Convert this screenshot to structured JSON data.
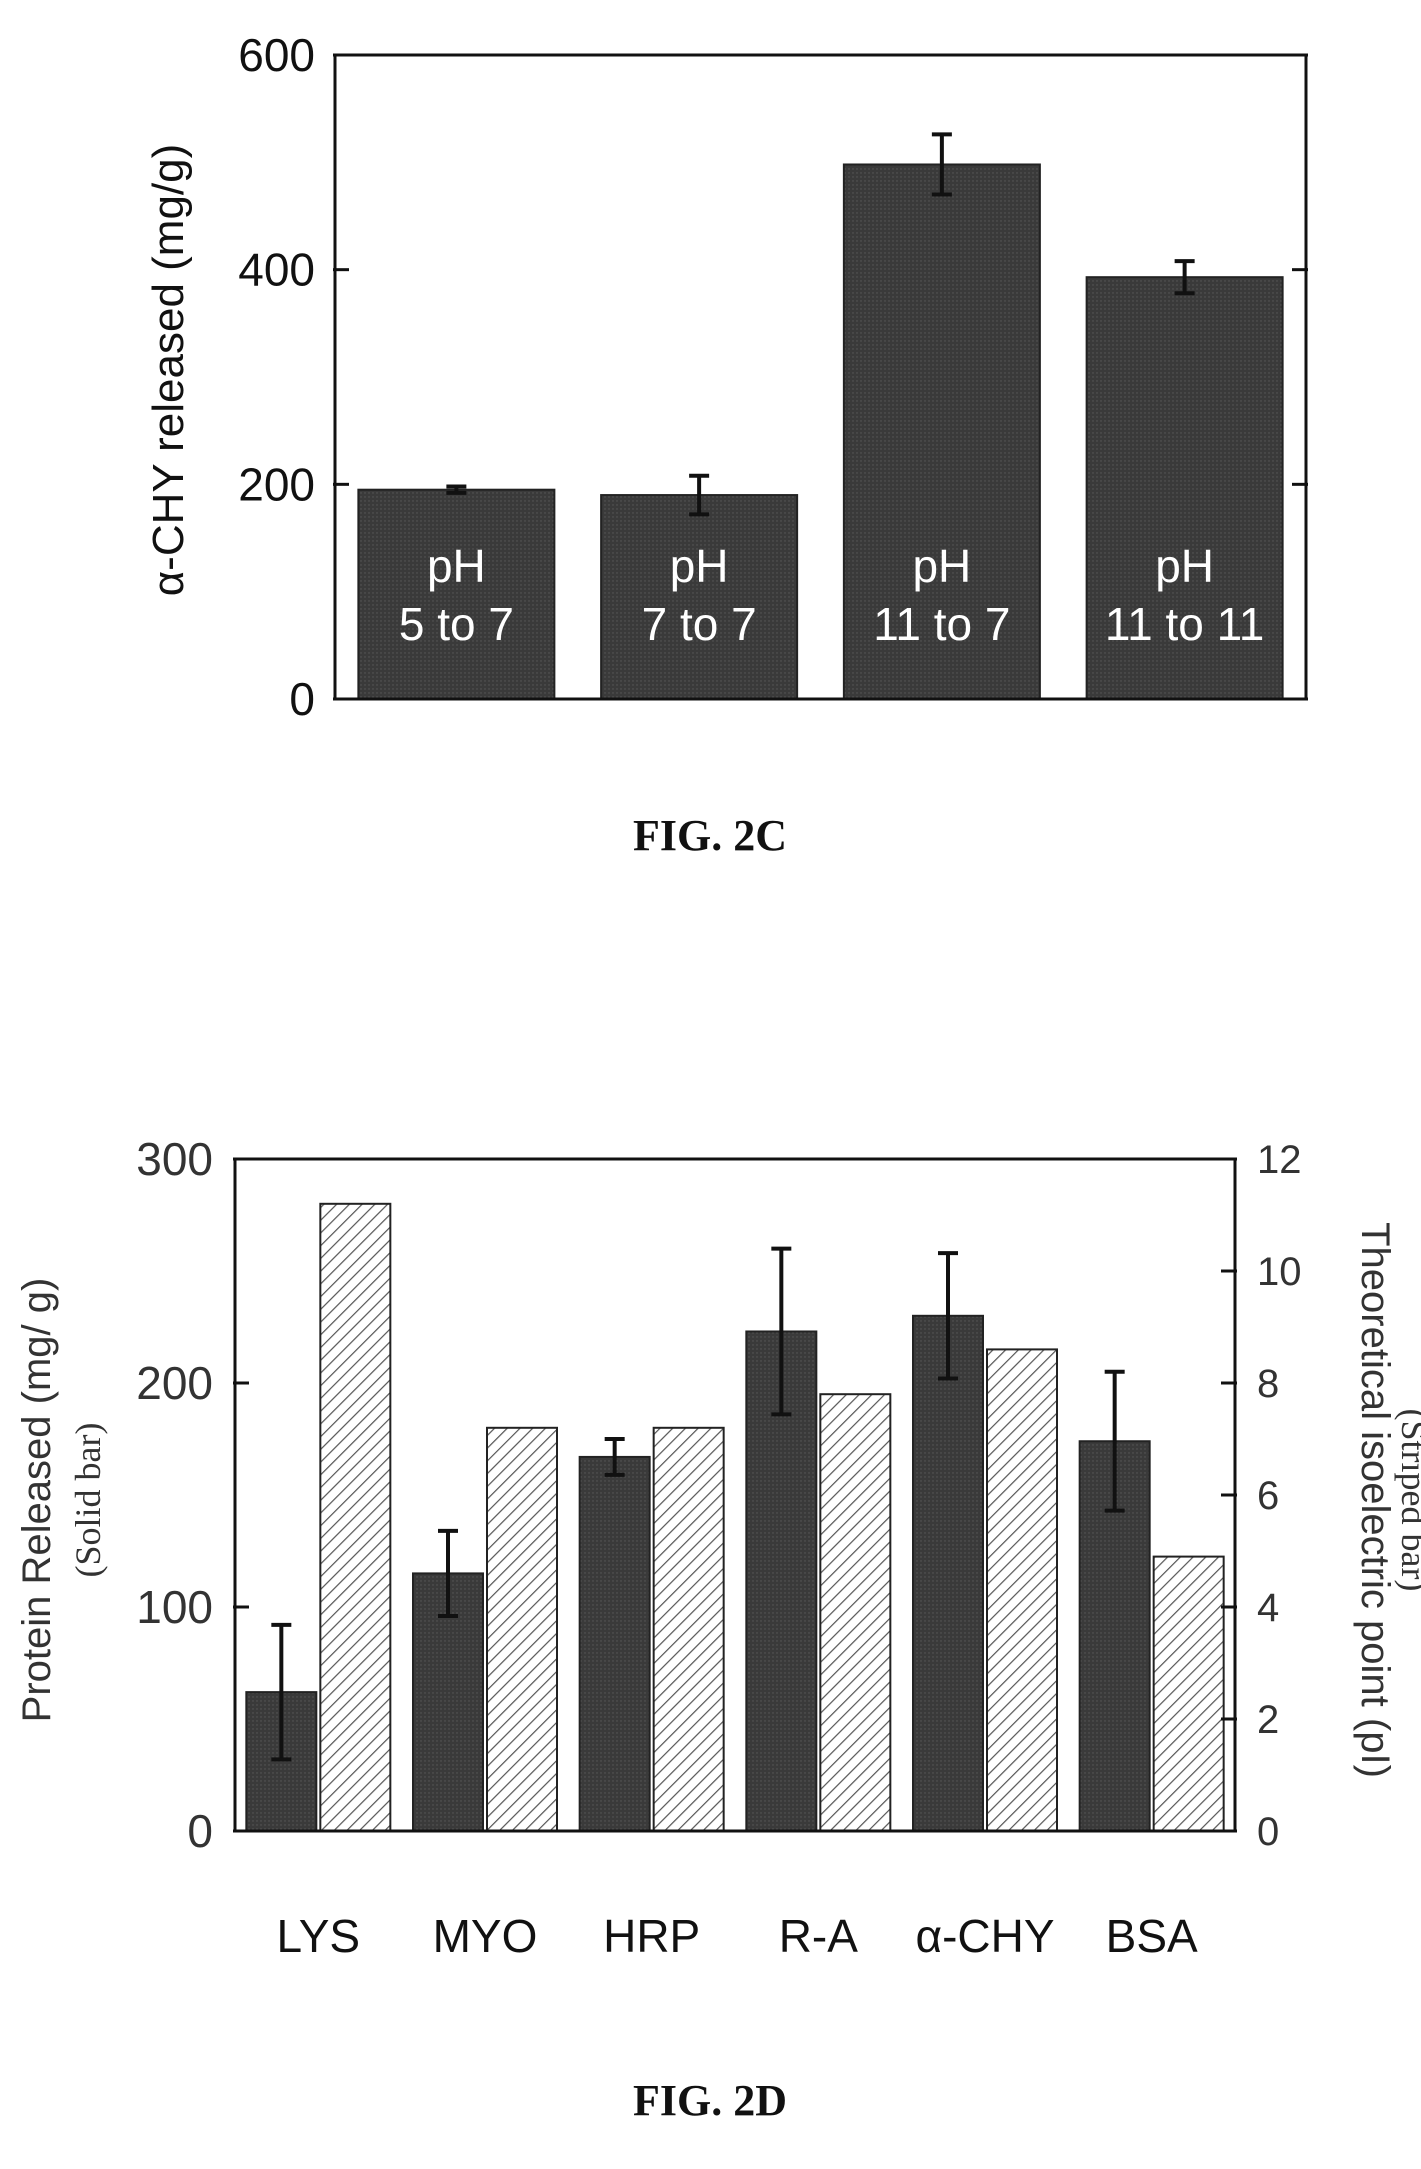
{
  "colors": {
    "solid_bar": "#3a3a3a",
    "striped_bar": "#ffffff",
    "stripe": "#555555",
    "axis": "#111111",
    "bar_label": "#ffffff"
  },
  "chart_data": [
    {
      "type": "bar",
      "caption": "FIG. 2C",
      "ylabel": "α-CHY released (mg/g)",
      "ylim": [
        0,
        600
      ],
      "yticks": [
        "0",
        "200",
        "400",
        "600"
      ],
      "categories": [
        "pH\n5 to 7",
        "pH\n7 to 7",
        "pH\n11 to 7",
        "pH\n11 to 11"
      ],
      "series": [
        {
          "values": [
            195,
            190,
            498,
            393
          ],
          "errors": [
            3,
            18,
            28,
            15
          ]
        }
      ]
    },
    {
      "type": "bar",
      "caption": "FIG. 2D",
      "ylabel": "Protein Released (mg/ g)",
      "ylabel_sub": "(Solid bar)",
      "y2label": "Theoretical isoelectric point (pI)",
      "y2label_sub": "(Striped bar)",
      "ylim": [
        0,
        300
      ],
      "y2lim": [
        0,
        12
      ],
      "yticks": [
        "0",
        "100",
        "200",
        "300"
      ],
      "y2ticks": [
        "0",
        "2",
        "4",
        "6",
        "8",
        "10",
        "12"
      ],
      "categories": [
        "LYS",
        "MYO",
        "HRP",
        "R-A",
        "α-CHY",
        "BSA"
      ],
      "series": [
        {
          "name": "Solid bar",
          "axis": "left",
          "values": [
            62,
            115,
            167,
            223,
            230,
            174
          ],
          "errors": [
            30,
            19,
            8,
            37,
            28,
            31
          ]
        },
        {
          "name": "Striped bar",
          "axis": "right",
          "values": [
            11.2,
            7.2,
            7.2,
            7.8,
            8.6,
            4.9
          ]
        }
      ]
    }
  ]
}
